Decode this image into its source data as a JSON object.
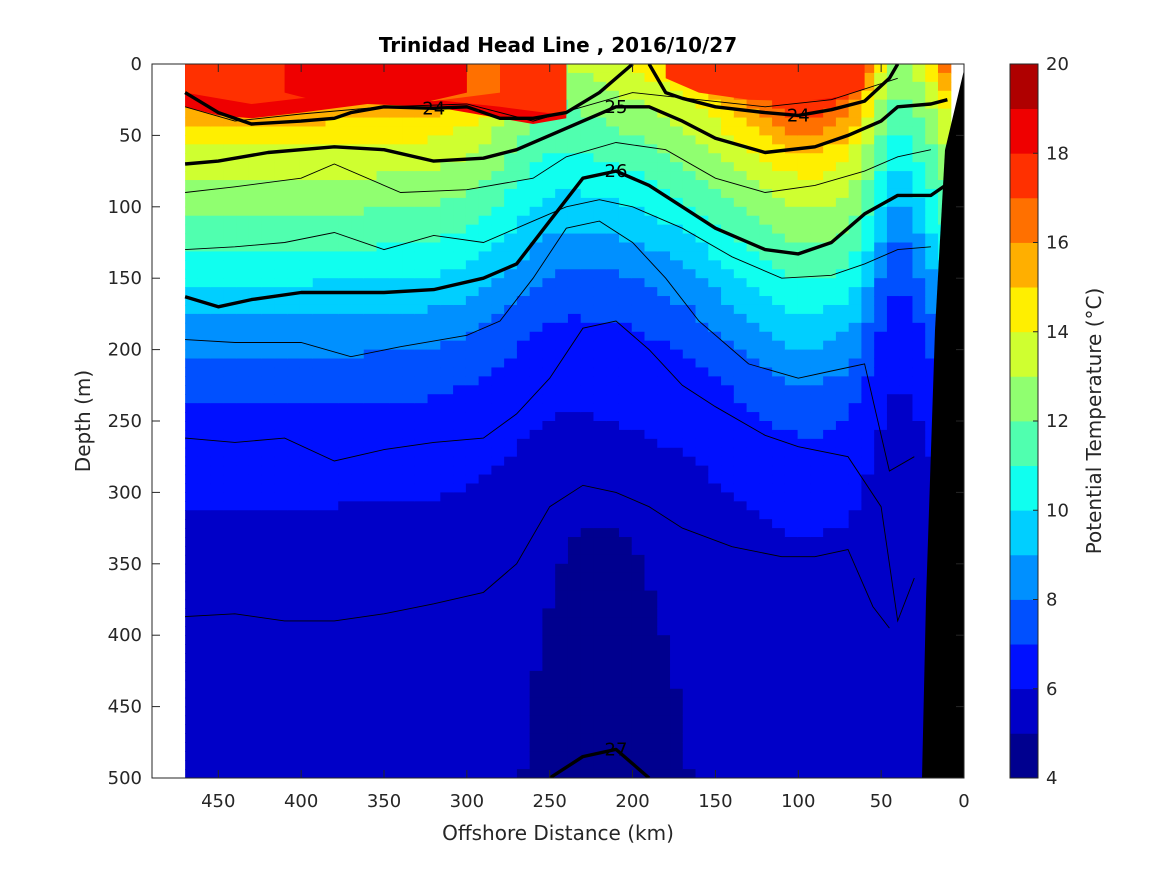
{
  "chart_data": {
    "type": "heatmap",
    "title": "Trinidad Head Line , 2016/10/27",
    "xlabel": "Offshore Distance (km)",
    "ylabel": "Depth (m)",
    "colorbar_label": "Potential Temperature (°C)",
    "xlim": [
      490,
      0
    ],
    "ylim": [
      500,
      0
    ],
    "x_reversed": true,
    "y_reversed": true,
    "x_ticks": [
      450,
      400,
      350,
      300,
      250,
      200,
      150,
      100,
      50,
      0
    ],
    "y_ticks": [
      0,
      50,
      100,
      150,
      200,
      250,
      300,
      350,
      400,
      450,
      500
    ],
    "colorbar": {
      "range": [
        4,
        20
      ],
      "ticks": [
        4,
        6,
        8,
        10,
        12,
        14,
        16,
        18,
        20
      ],
      "levels": [
        {
          "from": 4,
          "to": 5,
          "color": "#00008f"
        },
        {
          "from": 5,
          "to": 6,
          "color": "#0000c8"
        },
        {
          "from": 6,
          "to": 7,
          "color": "#0010ff"
        },
        {
          "from": 7,
          "to": 8,
          "color": "#0050ff"
        },
        {
          "from": 8,
          "to": 9,
          "color": "#0090ff"
        },
        {
          "from": 9,
          "to": 10,
          "color": "#00cfff"
        },
        {
          "from": 10,
          "to": 11,
          "color": "#10ffef"
        },
        {
          "from": 11,
          "to": 12,
          "color": "#50ffaf"
        },
        {
          "from": 12,
          "to": 13,
          "color": "#90ff70"
        },
        {
          "from": 13,
          "to": 14,
          "color": "#cfff30"
        },
        {
          "from": 14,
          "to": 15,
          "color": "#ffef00"
        },
        {
          "from": 15,
          "to": 16,
          "color": "#ffaf00"
        },
        {
          "from": 16,
          "to": 17,
          "color": "#ff7000"
        },
        {
          "from": 17,
          "to": 18,
          "color": "#ff3000"
        },
        {
          "from": 18,
          "to": 19,
          "color": "#ef0000"
        },
        {
          "from": 19,
          "to": 20,
          "color": "#af0000"
        }
      ]
    },
    "temperature_bands": [
      {
        "level": 18,
        "points": [
          [
            470,
            0
          ],
          [
            240,
            0
          ],
          [
            240,
            38
          ],
          [
            260,
            42
          ],
          [
            280,
            38
          ],
          [
            320,
            30
          ],
          [
            360,
            28
          ],
          [
            400,
            34
          ],
          [
            430,
            38
          ],
          [
            450,
            36
          ],
          [
            470,
            30
          ]
        ]
      },
      {
        "level": 17,
        "points": [
          [
            470,
            0
          ],
          [
            240,
            0
          ],
          [
            240,
            36
          ],
          [
            280,
            30
          ],
          [
            320,
            25
          ],
          [
            360,
            22
          ],
          [
            400,
            24
          ],
          [
            430,
            28
          ],
          [
            470,
            20
          ]
        ]
      },
      {
        "level": 16,
        "points": [
          [
            355,
            0
          ],
          [
            280,
            0
          ],
          [
            280,
            20
          ],
          [
            320,
            26
          ],
          [
            350,
            25
          ]
        ]
      },
      {
        "level": 17,
        "points": [
          [
            180,
            0
          ],
          [
            60,
            0
          ],
          [
            60,
            18
          ],
          [
            80,
            24
          ],
          [
            100,
            26
          ],
          [
            130,
            25
          ],
          [
            160,
            20
          ],
          [
            180,
            10
          ]
        ]
      },
      {
        "level": 18,
        "points": [
          [
            410,
            0
          ],
          [
            300,
            0
          ],
          [
            300,
            20
          ],
          [
            330,
            28
          ],
          [
            360,
            28
          ],
          [
            390,
            26
          ],
          [
            410,
            20
          ]
        ]
      }
    ],
    "isopycnals": [
      {
        "label": "24",
        "points": [
          [
            470,
            20
          ],
          [
            450,
            34
          ],
          [
            430,
            42
          ],
          [
            400,
            40
          ],
          [
            380,
            38
          ],
          [
            370,
            34
          ],
          [
            350,
            30
          ],
          [
            320,
            31
          ],
          [
            300,
            30
          ],
          [
            280,
            38
          ],
          [
            260,
            38
          ],
          [
            240,
            34
          ],
          [
            220,
            20
          ],
          [
            200,
            0
          ]
        ]
      },
      {
        "label": "24",
        "points": [
          [
            190,
            0
          ],
          [
            180,
            20
          ],
          [
            170,
            24
          ],
          [
            150,
            30
          ],
          [
            120,
            34
          ],
          [
            100,
            36
          ],
          [
            80,
            32
          ],
          [
            60,
            26
          ],
          [
            45,
            10
          ],
          [
            40,
            0
          ]
        ]
      },
      {
        "label": "25",
        "points": [
          [
            470,
            70
          ],
          [
            450,
            68
          ],
          [
            420,
            62
          ],
          [
            380,
            58
          ],
          [
            350,
            60
          ],
          [
            320,
            68
          ],
          [
            290,
            66
          ],
          [
            270,
            60
          ],
          [
            250,
            50
          ],
          [
            230,
            40
          ],
          [
            210,
            30
          ],
          [
            190,
            30
          ],
          [
            170,
            40
          ],
          [
            150,
            52
          ],
          [
            120,
            62
          ],
          [
            90,
            58
          ],
          [
            70,
            50
          ],
          [
            50,
            40
          ],
          [
            40,
            30
          ],
          [
            20,
            28
          ],
          [
            10,
            25
          ]
        ]
      },
      {
        "label": "26",
        "points": [
          [
            470,
            163
          ],
          [
            450,
            170
          ],
          [
            430,
            165
          ],
          [
            400,
            160
          ],
          [
            380,
            160
          ],
          [
            350,
            160
          ],
          [
            320,
            158
          ],
          [
            290,
            150
          ],
          [
            270,
            140
          ],
          [
            250,
            110
          ],
          [
            230,
            80
          ],
          [
            210,
            75
          ],
          [
            190,
            85
          ],
          [
            170,
            100
          ],
          [
            150,
            115
          ],
          [
            120,
            130
          ],
          [
            100,
            133
          ],
          [
            80,
            125
          ],
          [
            60,
            105
          ],
          [
            40,
            92
          ],
          [
            20,
            92
          ],
          [
            10,
            84
          ]
        ]
      },
      {
        "label": "27",
        "points": [
          [
            250,
            500
          ],
          [
            230,
            485
          ],
          [
            210,
            480
          ],
          [
            190,
            500
          ]
        ]
      }
    ],
    "thin_isotherms": [
      [
        [
          470,
          30
        ],
        [
          440,
          40
        ],
        [
          400,
          35
        ],
        [
          350,
          30
        ],
        [
          300,
          28
        ],
        [
          260,
          40
        ],
        [
          230,
          30
        ],
        [
          200,
          20
        ],
        [
          160,
          25
        ],
        [
          120,
          30
        ],
        [
          80,
          25
        ],
        [
          40,
          10
        ]
      ],
      [
        [
          470,
          90
        ],
        [
          440,
          86
        ],
        [
          400,
          80
        ],
        [
          380,
          70
        ],
        [
          340,
          90
        ],
        [
          300,
          88
        ],
        [
          260,
          80
        ],
        [
          240,
          65
        ],
        [
          210,
          55
        ],
        [
          180,
          60
        ],
        [
          150,
          80
        ],
        [
          120,
          90
        ],
        [
          90,
          85
        ],
        [
          60,
          75
        ],
        [
          40,
          65
        ],
        [
          20,
          60
        ]
      ],
      [
        [
          470,
          130
        ],
        [
          440,
          128
        ],
        [
          410,
          125
        ],
        [
          380,
          118
        ],
        [
          350,
          130
        ],
        [
          320,
          120
        ],
        [
          290,
          125
        ],
        [
          260,
          110
        ],
        [
          240,
          100
        ],
        [
          220,
          95
        ],
        [
          200,
          100
        ],
        [
          170,
          115
        ],
        [
          140,
          135
        ],
        [
          110,
          150
        ],
        [
          80,
          148
        ],
        [
          60,
          140
        ],
        [
          40,
          130
        ],
        [
          20,
          128
        ]
      ],
      [
        [
          470,
          193
        ],
        [
          440,
          195
        ],
        [
          400,
          195
        ],
        [
          370,
          205
        ],
        [
          340,
          198
        ],
        [
          300,
          190
        ],
        [
          280,
          180
        ],
        [
          260,
          150
        ],
        [
          240,
          115
        ],
        [
          220,
          110
        ],
        [
          200,
          125
        ],
        [
          180,
          150
        ],
        [
          160,
          180
        ],
        [
          130,
          210
        ],
        [
          100,
          220
        ],
        [
          80,
          215
        ],
        [
          60,
          210
        ],
        [
          45,
          285
        ],
        [
          30,
          275
        ]
      ],
      [
        [
          470,
          262
        ],
        [
          440,
          265
        ],
        [
          410,
          262
        ],
        [
          380,
          278
        ],
        [
          350,
          270
        ],
        [
          320,
          265
        ],
        [
          290,
          262
        ],
        [
          270,
          245
        ],
        [
          250,
          220
        ],
        [
          230,
          185
        ],
        [
          210,
          180
        ],
        [
          190,
          200
        ],
        [
          170,
          225
        ],
        [
          150,
          240
        ],
        [
          120,
          260
        ],
        [
          100,
          268
        ],
        [
          70,
          275
        ],
        [
          50,
          310
        ],
        [
          40,
          390
        ],
        [
          30,
          360
        ]
      ],
      [
        [
          470,
          387
        ],
        [
          440,
          385
        ],
        [
          410,
          390
        ],
        [
          380,
          390
        ],
        [
          350,
          385
        ],
        [
          320,
          378
        ],
        [
          290,
          370
        ],
        [
          270,
          350
        ],
        [
          250,
          310
        ],
        [
          230,
          295
        ],
        [
          210,
          300
        ],
        [
          190,
          310
        ],
        [
          170,
          325
        ],
        [
          140,
          338
        ],
        [
          110,
          345
        ],
        [
          90,
          345
        ],
        [
          70,
          340
        ],
        [
          55,
          380
        ],
        [
          45,
          395
        ]
      ]
    ]
  }
}
